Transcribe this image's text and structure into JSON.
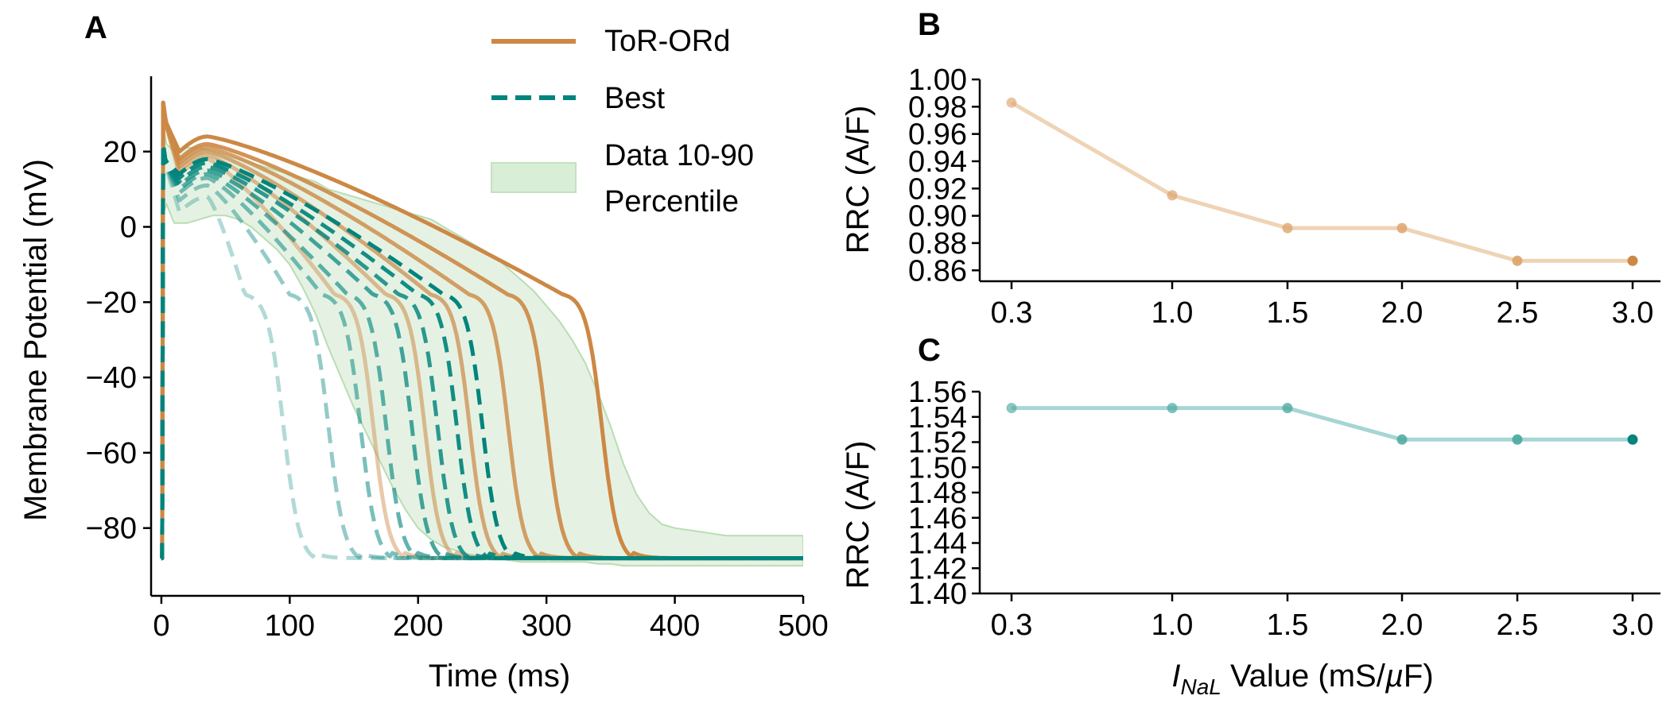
{
  "panel_labels": {
    "a": "A",
    "b": "B",
    "c": "C"
  },
  "legend": {
    "items": [
      {
        "label": "ToR-ORd",
        "color": "#cc8844",
        "style": "solid"
      },
      {
        "label": "Best",
        "color": "#00847c",
        "style": "dashed"
      },
      {
        "label": "Data 10-90\nPercentile",
        "color": "#cfe7cc",
        "style": "fill"
      }
    ]
  },
  "colors": {
    "tor_ord": "#cc8844",
    "best": "#00847c",
    "band_fill": "#cfe7cc",
    "band_edge": "#b9ddb4"
  },
  "chart_data": [
    {
      "id": "A",
      "type": "line",
      "title": "",
      "xlabel": "Time (ms)",
      "ylabel": "Membrane Potential (mV)",
      "xlim": [
        -8,
        500
      ],
      "ylim": [
        -98,
        40
      ],
      "xticks": [
        0,
        100,
        200,
        300,
        400,
        500
      ],
      "yticks": [
        -80,
        -60,
        -40,
        -20,
        0,
        20
      ],
      "band": {
        "name": "Data 10-90 Percentile",
        "x": [
          0,
          2,
          4,
          10,
          20,
          30,
          40,
          50,
          60,
          70,
          80,
          90,
          100,
          110,
          120,
          130,
          140,
          150,
          160,
          170,
          180,
          190,
          200,
          210,
          220,
          230,
          240,
          250,
          260,
          270,
          280,
          290,
          300,
          310,
          320,
          330,
          340,
          350,
          360,
          370,
          380,
          390,
          400,
          420,
          440,
          460,
          480,
          500
        ],
        "lower": [
          -70,
          4,
          6,
          1,
          1,
          2,
          3,
          3,
          2,
          0,
          -3,
          -6,
          -10,
          -16,
          -23,
          -32,
          -40,
          -48,
          -55,
          -62,
          -69,
          -75,
          -80,
          -83,
          -85,
          -86,
          -87,
          -87.5,
          -88,
          -88.5,
          -89,
          -89,
          -89,
          -89,
          -89,
          -89,
          -89.5,
          -89.5,
          -90,
          -90,
          -90,
          -90,
          -90,
          -90,
          -90,
          -90,
          -90,
          -90
        ],
        "upper": [
          0,
          26,
          22,
          20,
          21,
          21,
          20,
          19,
          18,
          17,
          16,
          15,
          14,
          13,
          12,
          10,
          9,
          8,
          7,
          6,
          5,
          4,
          3,
          2,
          0,
          -2,
          -4,
          -6,
          -8,
          -11,
          -14,
          -17,
          -21,
          -25,
          -30,
          -36,
          -44,
          -53,
          -63,
          -71,
          -76,
          -79,
          -80,
          -81,
          -82,
          -82,
          -82,
          -82
        ]
      },
      "tor_ord_curves": [
        {
          "apd": 190,
          "peak": 18,
          "alpha": 0.45
        },
        {
          "apd": 230,
          "peak": 19,
          "alpha": 0.55
        },
        {
          "apd": 265,
          "peak": 20,
          "alpha": 0.7
        },
        {
          "apd": 295,
          "peak": 21,
          "alpha": 0.8
        },
        {
          "apd": 325,
          "peak": 22,
          "alpha": 0.9
        },
        {
          "apd": 368,
          "peak": 24,
          "alpha": 1.0
        }
      ],
      "best_curves": [
        {
          "apd": 120,
          "peak": 8,
          "alpha": 0.3
        },
        {
          "apd": 155,
          "peak": 11,
          "alpha": 0.42
        },
        {
          "apd": 180,
          "peak": 13,
          "alpha": 0.52
        },
        {
          "apd": 200,
          "peak": 14,
          "alpha": 0.62
        },
        {
          "apd": 220,
          "peak": 15,
          "alpha": 0.72
        },
        {
          "apd": 240,
          "peak": 16,
          "alpha": 0.82
        },
        {
          "apd": 255,
          "peak": 17,
          "alpha": 0.92
        },
        {
          "apd": 275,
          "peak": 18,
          "alpha": 1.0
        }
      ]
    },
    {
      "id": "B",
      "type": "line",
      "title": "",
      "xlabel": "",
      "ylabel": "RRC (A/F)",
      "categories": [
        "0.3",
        "1.0",
        "1.5",
        "2.0",
        "2.5",
        "3.0"
      ],
      "x": [
        0.3,
        1.0,
        1.5,
        2.0,
        2.5,
        3.0
      ],
      "ylim": [
        0.852,
        1.0
      ],
      "yticks": [
        "1.00",
        "0.98",
        "0.96",
        "0.94",
        "0.92",
        "0.90",
        "0.88",
        "0.86"
      ],
      "series": [
        {
          "values": [
            0.983,
            0.915,
            0.891,
            0.891,
            0.867,
            0.867
          ],
          "line_color": "#efd3b5",
          "marker_color": "#dea56e",
          "marker_color_last": "#cc8844"
        }
      ]
    },
    {
      "id": "C",
      "type": "line",
      "title": "",
      "xlabel": "I_NaL Value (mS/µF)",
      "ylabel": "RRC (A/F)",
      "categories": [
        "0.3",
        "1.0",
        "1.5",
        "2.0",
        "2.5",
        "3.0"
      ],
      "x": [
        0.3,
        1.0,
        1.5,
        2.0,
        2.5,
        3.0
      ],
      "ylim": [
        1.4,
        1.56
      ],
      "yticks": [
        "1.56",
        "1.54",
        "1.52",
        "1.50",
        "1.48",
        "1.46",
        "1.44",
        "1.42",
        "1.40"
      ],
      "series": [
        {
          "values": [
            1.547,
            1.547,
            1.547,
            1.522,
            1.522,
            1.522
          ],
          "line_color": "#a6d6d3",
          "marker_color": "#4ea9a2",
          "marker_color_last": "#00847c"
        }
      ]
    }
  ],
  "xlabel_parts": {
    "i": "I",
    "sub": "NaL",
    "rest": " Value (mS/",
    "mu": "µ",
    "unit_end": "F)"
  }
}
